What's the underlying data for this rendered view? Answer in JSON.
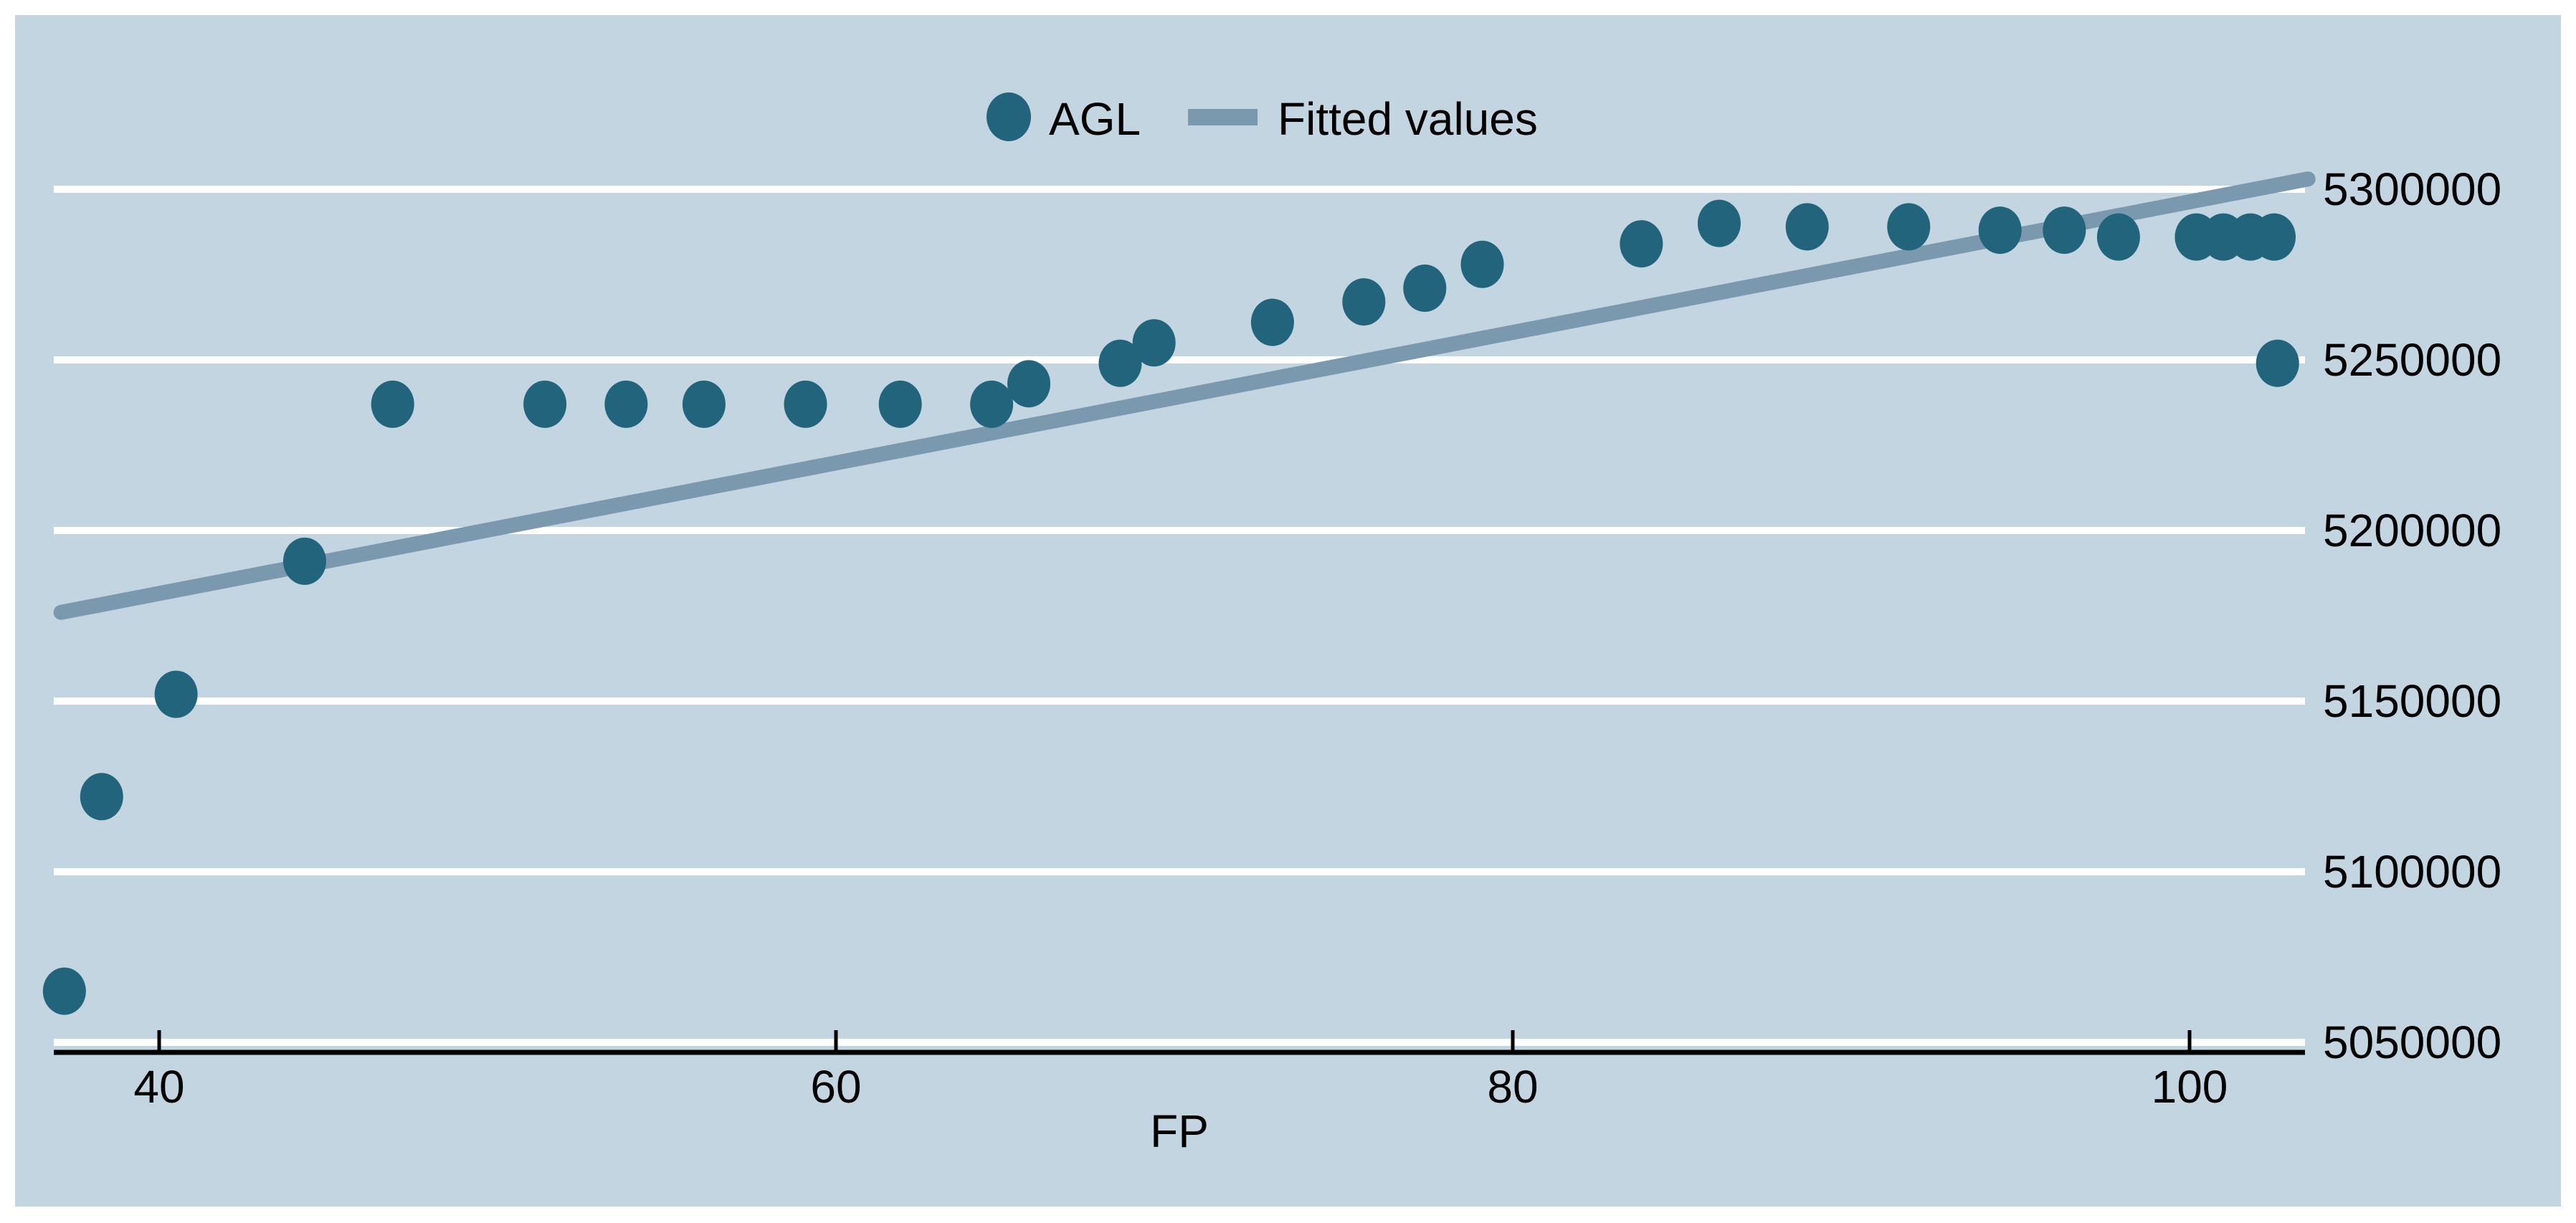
{
  "chart_data": {
    "type": "scatter",
    "title": "",
    "xlabel": "FP",
    "ylabel": "",
    "x_ticks": [
      40,
      60,
      80,
      100
    ],
    "y_ticks": [
      5050000,
      5100000,
      5150000,
      5200000,
      5250000,
      5300000
    ],
    "xlim": [
      36.9,
      103.5
    ],
    "ylim": [
      5050000,
      5310000
    ],
    "grid": "horizontal-white-lines",
    "legend_position": "top-center-inside",
    "series": [
      {
        "name": "AGL",
        "type": "scatter",
        "color": "#21647c",
        "points": [
          [
            37.2,
            5065000
          ],
          [
            38.3,
            5122000
          ],
          [
            40.5,
            5152000
          ],
          [
            44.3,
            5191000
          ],
          [
            46.9,
            5237000
          ],
          [
            51.4,
            5237000
          ],
          [
            53.8,
            5237000
          ],
          [
            56.1,
            5237000
          ],
          [
            59.1,
            5237000
          ],
          [
            61.9,
            5237000
          ],
          [
            64.6,
            5237000
          ],
          [
            65.7,
            5243000
          ],
          [
            68.4,
            5249000
          ],
          [
            69.4,
            5255000
          ],
          [
            72.9,
            5261000
          ],
          [
            75.6,
            5267000
          ],
          [
            77.4,
            5271000
          ],
          [
            79.1,
            5278000
          ],
          [
            83.8,
            5284000
          ],
          [
            86.1,
            5290000
          ],
          [
            88.7,
            5289000
          ],
          [
            91.7,
            5289000
          ],
          [
            94.4,
            5288000
          ],
          [
            96.3,
            5288000
          ],
          [
            97.9,
            5286000
          ],
          [
            100.2,
            5286000
          ],
          [
            101.0,
            5286000
          ],
          [
            101.8,
            5286000
          ],
          [
            102.5,
            5286000
          ],
          [
            102.6,
            5249000
          ]
        ]
      },
      {
        "name": "Fitted values",
        "type": "line",
        "color": "#7b99ae",
        "points": [
          [
            37.1,
            5176000
          ],
          [
            103.5,
            5303000
          ]
        ]
      }
    ]
  },
  "legend": {
    "items": [
      {
        "label": "AGL",
        "marker": "dot"
      },
      {
        "label": "Fitted values",
        "marker": "line-swatch"
      }
    ]
  },
  "colors": {
    "plot_background": "#c3d5e1",
    "page_background": "#ffffff",
    "gridline": "#ffffff",
    "axis": "#000000",
    "text": "#000000",
    "marker": "#21647c",
    "fit_line": "#7b99ae"
  }
}
